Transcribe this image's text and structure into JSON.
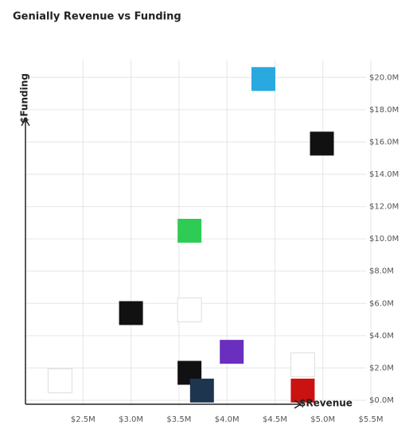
{
  "chart_data": {
    "type": "scatter",
    "title": "Genially Revenue vs Funding",
    "x_label": "$Revenue",
    "y_label": "$Funding",
    "x": [
      2.26,
      3.0,
      3.61,
      3.61,
      3.61,
      3.74,
      4.05,
      4.38,
      4.99,
      4.79,
      4.79
    ],
    "values": [
      1.2,
      5.4,
      10.5,
      5.6,
      1.7,
      0.6,
      3.0,
      19.9,
      15.9,
      2.2,
      0.6
    ],
    "colors": [
      "#ffffff",
      "#111111",
      "#2ecc55",
      "#ffffff",
      "#111111",
      "#1e3550",
      "#6a2fbf",
      "#2aa8e0",
      "#111111",
      "#ffffff",
      "#cc1111"
    ],
    "xlim": [
      1.9,
      5.5
    ],
    "xticks": [
      {
        "value": 2.5,
        "label": "$2.5M"
      },
      {
        "value": 3.0,
        "label": "$3.0M"
      },
      {
        "value": 3.5,
        "label": "$3.5M"
      },
      {
        "value": 4.0,
        "label": "$4.0M"
      },
      {
        "value": 4.5,
        "label": "$4.5M"
      },
      {
        "value": 5.0,
        "label": "$5.0M"
      },
      {
        "value": 5.5,
        "label": "$5.5M"
      }
    ],
    "ylim": [
      0,
      21
    ],
    "yticks": [
      {
        "value": 0,
        "label": "$0.0M"
      },
      {
        "value": 2,
        "label": "$2.0M"
      },
      {
        "value": 4,
        "label": "$4.0M"
      },
      {
        "value": 6,
        "label": "$6.0M"
      },
      {
        "value": 8,
        "label": "$8.0M"
      },
      {
        "value": 10,
        "label": "$10.0M"
      },
      {
        "value": 12,
        "label": "$12.0M"
      },
      {
        "value": 14,
        "label": "$14.0M"
      },
      {
        "value": 16,
        "label": "$16.0M"
      },
      {
        "value": 18,
        "label": "$18.0M"
      },
      {
        "value": 20,
        "label": "$20.0M"
      }
    ],
    "grid": true
  }
}
